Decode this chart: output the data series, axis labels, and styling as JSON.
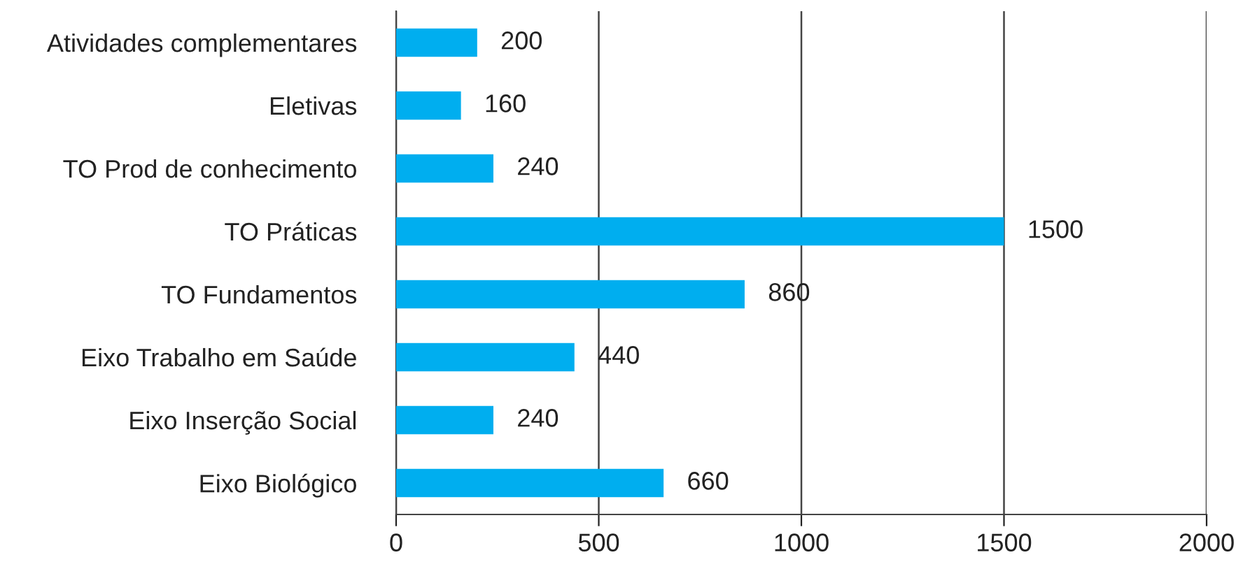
{
  "chart_data": {
    "type": "bar",
    "orientation": "horizontal",
    "categories": [
      "Atividades complementares",
      "Eletivas",
      "TO Prod de conhecimento",
      "TO Práticas",
      "TO Fundamentos",
      "Eixo Trabalho em Saúde",
      "Eixo Inserção Social",
      "Eixo Biológico"
    ],
    "values": [
      200,
      160,
      240,
      1500,
      860,
      440,
      240,
      660
    ],
    "color": "#00aeef",
    "xlim": [
      0,
      2000
    ],
    "xticks": [
      0,
      500,
      1000,
      1500,
      2000
    ],
    "grid": "x",
    "data_labels": true
  }
}
